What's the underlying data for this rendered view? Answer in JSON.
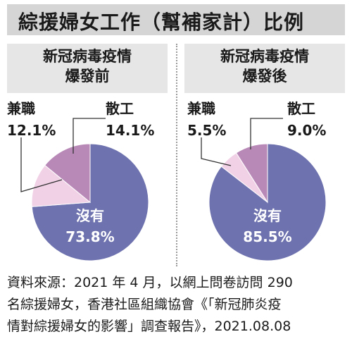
{
  "title": "綜援婦女工作（幫補家計）比例",
  "chart_data": [
    {
      "type": "pie",
      "title_lines": [
        "新冠病毒疫情",
        "爆發前"
      ],
      "slices": [
        {
          "label": "沒有",
          "value": 73.8,
          "display": "73.8%",
          "color": "#6e72ae"
        },
        {
          "label": "兼職",
          "value": 12.1,
          "display": "12.1%",
          "color": "#f1d1e6"
        },
        {
          "label": "散工",
          "value": 14.1,
          "display": "14.1%",
          "color": "#b889b7"
        }
      ]
    },
    {
      "type": "pie",
      "title_lines": [
        "新冠病毒疫情",
        "爆發後"
      ],
      "slices": [
        {
          "label": "沒有",
          "value": 85.5,
          "display": "85.5%",
          "color": "#6e72ae"
        },
        {
          "label": "兼職",
          "value": 5.5,
          "display": "5.5%",
          "color": "#f1d1e6"
        },
        {
          "label": "散工",
          "value": 9.0,
          "display": "9.0%",
          "color": "#b889b7"
        }
      ]
    }
  ],
  "source_lines": [
    "資料來源：2021 年 4 月，以網上問卷訪問 290",
    "名綜援婦女，香港社區組織協會《「新冠肺炎疫",
    "情對綜援婦女的影響」調查報告》，2021.08.08"
  ]
}
